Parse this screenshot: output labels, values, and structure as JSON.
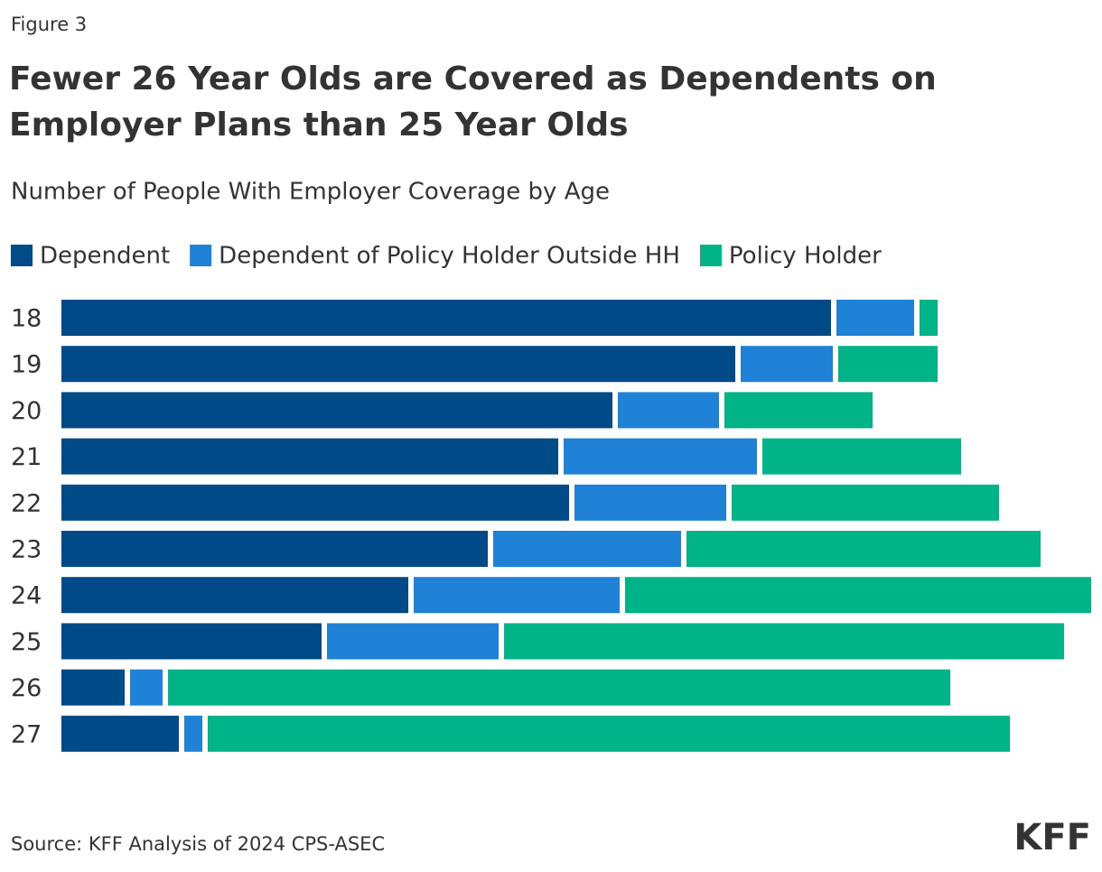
{
  "figure_label": "Figure 3",
  "source": "Source: KFF Analysis of 2024 CPS-ASEC",
  "logo": "KFF",
  "chart_data": {
    "type": "bar",
    "orientation": "horizontal",
    "stacked": true,
    "title": "Fewer 26 Year Olds are Covered as Dependents on Employer Plans than 25 Year Olds",
    "subtitle": "Number of People With Employer Coverage by Age",
    "categories": [
      "18",
      "19",
      "20",
      "21",
      "22",
      "23",
      "24",
      "25",
      "26",
      "27"
    ],
    "series": [
      {
        "name": "Dependent",
        "color": "#004b87",
        "values": [
          852,
          746,
          610,
          550,
          562,
          472,
          384,
          288,
          70,
          130
        ]
      },
      {
        "name": "Dependent of Policy Holder Outside HH",
        "color": "#1f82d6",
        "values": [
          86,
          102,
          112,
          214,
          168,
          208,
          228,
          190,
          36,
          20
        ]
      },
      {
        "name": "Policy Holder",
        "color": "#00b487",
        "values": [
          20,
          110,
          164,
          220,
          296,
          392,
          516,
          620,
          866,
          888
        ]
      }
    ]
  }
}
